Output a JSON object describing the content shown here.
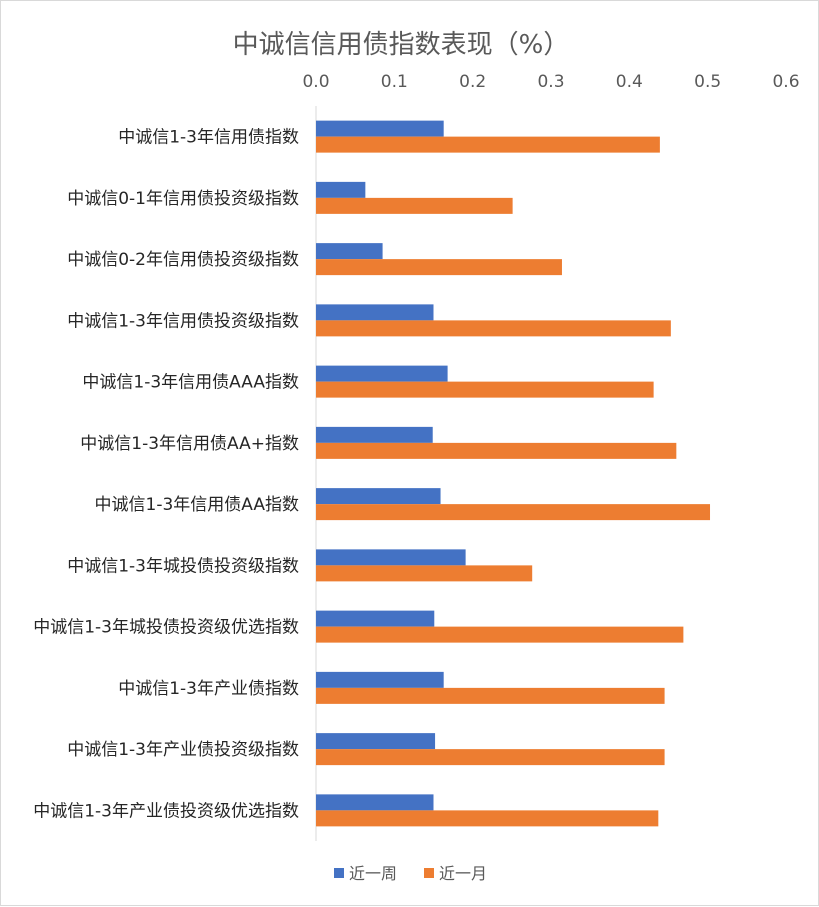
{
  "chart_data": {
    "type": "bar",
    "orientation": "horizontal",
    "title": "中诚信信用债指数表现（%）",
    "xlim": [
      0,
      0.6
    ],
    "xticks": [
      "0.0",
      "0.1",
      "0.2",
      "0.3",
      "0.4",
      "0.5",
      "0.6"
    ],
    "axis_position": "top",
    "grid": false,
    "legend_position": "bottom",
    "categories": [
      "中诚信1-3年信用债指数",
      "中诚信0-1年信用债投资级指数",
      "中诚信0-2年信用债投资级指数",
      "中诚信1-3年信用债投资级指数",
      "中诚信1-3年信用债AAA指数",
      "中诚信1-3年信用债AA+指数",
      "中诚信1-3年信用债AA指数",
      "中诚信1-3年城投债投资级指数",
      "中诚信1-3年城投债投资级优选指数",
      "中诚信1-3年产业债指数",
      "中诚信1-3年产业债投资级指数",
      "中诚信1-3年产业债投资级优选指数"
    ],
    "series": [
      {
        "name": "近一周",
        "color": "#4472c4",
        "values": [
          0.163,
          0.063,
          0.085,
          0.15,
          0.168,
          0.149,
          0.159,
          0.191,
          0.151,
          0.163,
          0.152,
          0.15
        ]
      },
      {
        "name": "近一月",
        "color": "#ed7d31",
        "values": [
          0.439,
          0.251,
          0.314,
          0.453,
          0.431,
          0.46,
          0.503,
          0.276,
          0.469,
          0.445,
          0.445,
          0.437
        ]
      }
    ]
  }
}
